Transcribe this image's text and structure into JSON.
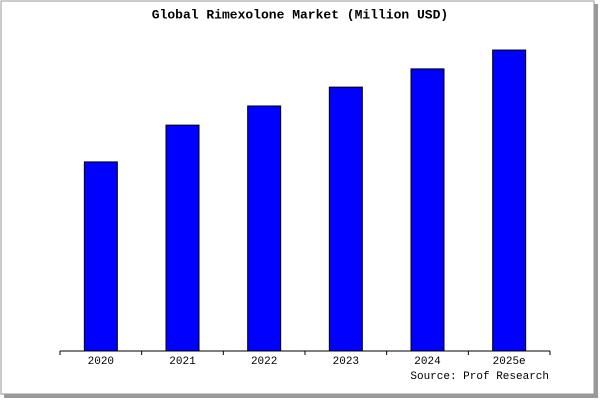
{
  "chart_data": {
    "type": "bar",
    "title": "Global Rimexolone Market (Million USD)",
    "categories": [
      "2020",
      "2021",
      "2022",
      "2023",
      "2024",
      "2025e"
    ],
    "values": [
      62.2,
      74.3,
      80.6,
      86.8,
      92.8,
      99
    ],
    "color": "#0000ff",
    "ylim": [
      0,
      100
    ],
    "source": "Source: Prof Research"
  }
}
